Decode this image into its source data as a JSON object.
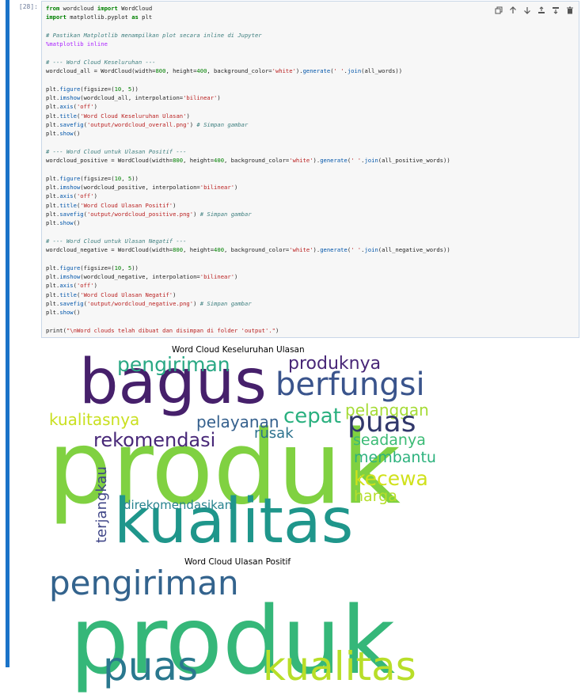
{
  "cell": {
    "prompt": "[28]:",
    "toolbar": [
      {
        "name": "duplicate-icon",
        "label": "Copy cell"
      },
      {
        "name": "arrow-up-icon",
        "label": "Move up"
      },
      {
        "name": "arrow-down-icon",
        "label": "Move down"
      },
      {
        "name": "insert-above-icon",
        "label": "Insert above"
      },
      {
        "name": "insert-below-icon",
        "label": "Insert below"
      },
      {
        "name": "trash-icon",
        "label": "Delete"
      }
    ],
    "code_lines": [
      "from wordcloud import WordCloud",
      "import matplotlib.pyplot as plt",
      "",
      "# Pastikan Matplotlib menampilkan plot secara inline di Jupyter",
      "%matplotlib inline",
      "",
      "# --- Word Cloud Keseluruhan ---",
      "wordcloud_all = WordCloud(width=800, height=400, background_color='white').generate(' '.join(all_words))",
      "",
      "plt.figure(figsize=(10, 5))",
      "plt.imshow(wordcloud_all, interpolation='bilinear')",
      "plt.axis('off')",
      "plt.title('Word Cloud Keseluruhan Ulasan')",
      "plt.savefig('output/wordcloud_overall.png') # Simpan gambar",
      "plt.show()",
      "",
      "# --- Word Cloud untuk Ulasan Positif ---",
      "wordcloud_positive = WordCloud(width=800, height=400, background_color='white').generate(' '.join(all_positive_words))",
      "",
      "plt.figure(figsize=(10, 5))",
      "plt.imshow(wordcloud_positive, interpolation='bilinear')",
      "plt.axis('off')",
      "plt.title('Word Cloud Ulasan Positif')",
      "plt.savefig('output/wordcloud_positive.png') # Simpan gambar",
      "plt.show()",
      "",
      "# --- Word Cloud untuk Ulasan Negatif ---",
      "wordcloud_negative = WordCloud(width=800, height=400, background_color='white').generate(' '.join(all_negative_words))",
      "",
      "plt.figure(figsize=(10, 5))",
      "plt.imshow(wordcloud_negative, interpolation='bilinear')",
      "plt.axis('off')",
      "plt.title('Word Cloud Ulasan Negatif')",
      "plt.savefig('output/wordcloud_negative.png') # Simpan gambar",
      "plt.show()",
      "",
      "print(\"\\nWord clouds telah dibuat dan disimpan di folder 'output'.\")"
    ]
  },
  "output": {
    "figures": [
      {
        "title": "Word Cloud Keseluruhan Ulasan",
        "words": [
          {
            "text": "bagus",
            "color": "#46206b"
          },
          {
            "text": "produk",
            "color": "#80d141"
          },
          {
            "text": "kualitas",
            "color": "#1f968b"
          },
          {
            "text": "pengiriman",
            "color": "#2aa884"
          },
          {
            "text": "produknya",
            "color": "#482677"
          },
          {
            "text": "berfungsi",
            "color": "#3a548c"
          },
          {
            "text": "kualitasnya",
            "color": "#c9e020"
          },
          {
            "text": "pelayanan",
            "color": "#35608d"
          },
          {
            "text": "cepat",
            "color": "#2ab07f"
          },
          {
            "text": "pelanggan",
            "color": "#a5db36"
          },
          {
            "text": "puas",
            "color": "#31386b"
          },
          {
            "text": "rekomendasi",
            "color": "#482878"
          },
          {
            "text": "rusak",
            "color": "#2c728e"
          },
          {
            "text": "seadanya",
            "color": "#3bbb75"
          },
          {
            "text": "membantu",
            "color": "#2db27d"
          },
          {
            "text": "kecewa",
            "color": "#d0e11c"
          },
          {
            "text": "harga",
            "color": "#b5de2b"
          },
          {
            "text": "terjangkau",
            "color": "#404688"
          },
          {
            "text": "direkomendasikan",
            "color": "#26828e"
          }
        ]
      },
      {
        "title": "Word Cloud Ulasan Positif",
        "words": [
          {
            "text": "pengiriman",
            "color": "#33638d"
          },
          {
            "text": "produk",
            "color": "#35b779"
          },
          {
            "text": "puas",
            "color": "#2a788e"
          },
          {
            "text": "kualitas",
            "color": "#b8de29"
          }
        ]
      }
    ]
  }
}
